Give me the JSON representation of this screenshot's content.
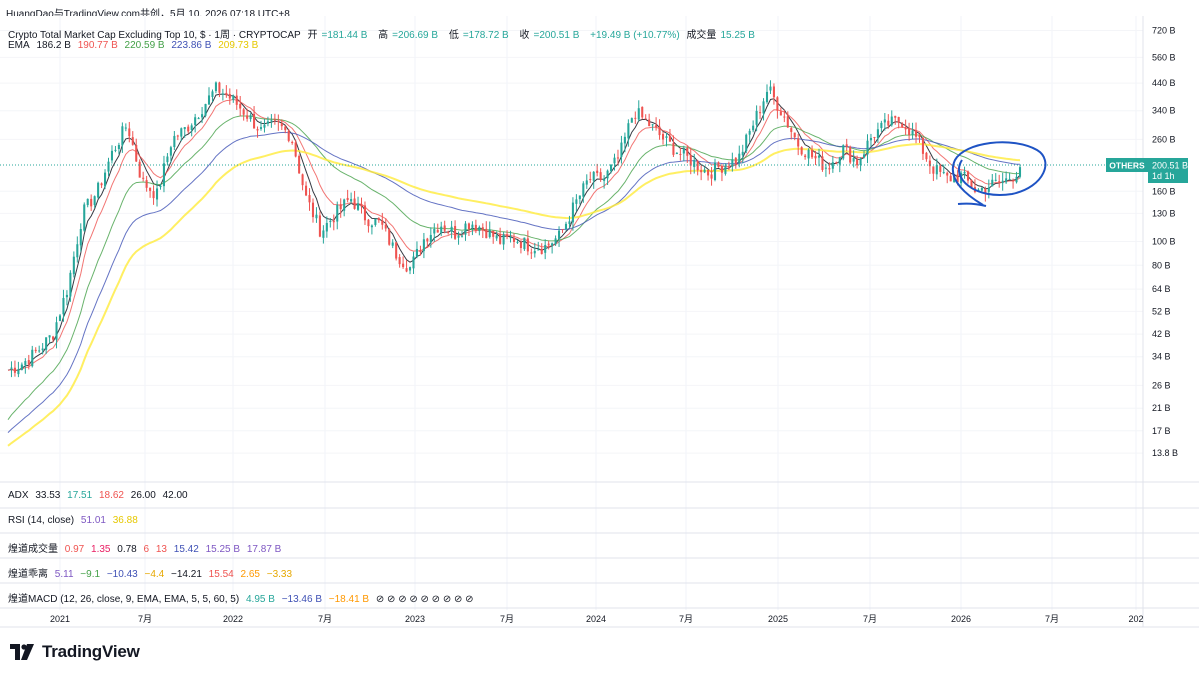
{
  "header": {
    "attribution": "HuangDao与TradingView.com共创，5月 10, 2026 07:18 UTC+8"
  },
  "symbol_line": {
    "name": "Crypto Total Market Cap Excluding Top 10, $ · 1周 · CRYPTOCAP",
    "open_label": "开",
    "open": "=181.44 B",
    "high_label": "高",
    "high": "=206.69 B",
    "low_label": "低",
    "low": "=178.72 B",
    "close_label": "收",
    "close": "=200.51 B",
    "change": "+19.49 B (+10.77%)",
    "volume_label": "成交量",
    "volume": "15.25 B"
  },
  "ema_line": {
    "label": "EMA",
    "v1": "186.2 B",
    "v2": "190.77 B",
    "v3": "220.59 B",
    "v4": "223.86 B",
    "v5": "209.73 B"
  },
  "indicators": {
    "adx": {
      "label": "ADX",
      "values": [
        "33.53",
        "17.51",
        "18.62",
        "26.00",
        "42.00"
      ]
    },
    "rsi": {
      "label": "RSI (14, close)",
      "values": [
        "51.01",
        "36.88"
      ]
    },
    "vol": {
      "label": "煌道成交量",
      "values": [
        "0.97",
        "1.35",
        "0.78",
        "6",
        "13",
        "15.42",
        "15.25 B",
        "17.87 B"
      ]
    },
    "dev": {
      "label": "煌道乖离",
      "values": [
        "5.11",
        "−9.1",
        "−10.43",
        "−4.4",
        "−14.21",
        "15.54",
        "2.65",
        "−3.33"
      ]
    },
    "macd": {
      "label": "煌道MACD (12, 26, close, 9, EMA, EMA, 5, 5, 60, 5)",
      "values": [
        "4.95 B",
        "−13.46 B",
        "−18.41 B"
      ],
      "extra": "⊘ ⊘ ⊘ ⊘ ⊘ ⊘ ⊘ ⊘ ⊘"
    }
  },
  "price_badge": {
    "symbol": "OTHERS",
    "price": "200.51 B",
    "countdown": "1d 1h"
  },
  "y_axis_labels": [
    "720 B",
    "560 B",
    "440 B",
    "340 B",
    "260 B",
    "160 B",
    "130 B",
    "100 B",
    "80 B",
    "64 B",
    "52 B",
    "42 B",
    "34 B",
    "26 B",
    "21 B",
    "17 B",
    "13.8 B"
  ],
  "x_axis_labels": [
    "2021",
    "7月",
    "2022",
    "7月",
    "2023",
    "7月",
    "2024",
    "7月",
    "2025",
    "7月",
    "2026",
    "7月",
    "202"
  ],
  "branding": {
    "logo_text": "TradingView"
  },
  "colors": {
    "up": "#26a69a",
    "down": "#ef5350",
    "ema1": "#131722",
    "ema2": "#ef5350",
    "ema3": "#43a047",
    "ema4": "#3f51b5",
    "ema5": "#ffeb3b",
    "annotation": "#1e53c4",
    "badge": "#26a69a"
  },
  "chart_data": {
    "type": "candlestick",
    "scale": "log",
    "timeframe": "1W",
    "ylim": [
      12,
      780
    ],
    "x_range": [
      "2020-09",
      "2027-02"
    ],
    "price_points": [
      [
        "2020-09",
        30
      ],
      [
        "2020-10",
        32
      ],
      [
        "2020-11",
        36
      ],
      [
        "2020-12",
        42
      ],
      [
        "2021-01",
        65
      ],
      [
        "2021-02",
        130
      ],
      [
        "2021-03",
        160
      ],
      [
        "2021-04",
        230
      ],
      [
        "2021-05",
        300
      ],
      [
        "2021-06",
        175
      ],
      [
        "2021-07",
        155
      ],
      [
        "2021-08",
        260
      ],
      [
        "2021-09",
        290
      ],
      [
        "2021-10",
        350
      ],
      [
        "2021-11",
        420
      ],
      [
        "2021-12",
        380
      ],
      [
        "2022-01",
        330
      ],
      [
        "2022-02",
        280
      ],
      [
        "2022-03",
        300
      ],
      [
        "2022-04",
        270
      ],
      [
        "2022-05",
        150
      ],
      [
        "2022-06",
        110
      ],
      [
        "2022-07",
        130
      ],
      [
        "2022-08",
        150
      ],
      [
        "2022-09",
        125
      ],
      [
        "2022-10",
        118
      ],
      [
        "2022-11",
        90
      ],
      [
        "2022-12",
        78
      ],
      [
        "2023-01",
        105
      ],
      [
        "2023-02",
        118
      ],
      [
        "2023-03",
        108
      ],
      [
        "2023-04",
        120
      ],
      [
        "2023-05",
        112
      ],
      [
        "2023-06",
        100
      ],
      [
        "2023-07",
        103
      ],
      [
        "2023-08",
        96
      ],
      [
        "2023-09",
        95
      ],
      [
        "2023-10",
        105
      ],
      [
        "2023-11",
        140
      ],
      [
        "2023-12",
        180
      ],
      [
        "2024-01",
        180
      ],
      [
        "2024-02",
        220
      ],
      [
        "2024-03",
        340
      ],
      [
        "2024-04",
        300
      ],
      [
        "2024-05",
        260
      ],
      [
        "2024-06",
        230
      ],
      [
        "2024-07",
        210
      ],
      [
        "2024-08",
        190
      ],
      [
        "2024-09",
        205
      ],
      [
        "2024-10",
        215
      ],
      [
        "2024-11",
        300
      ],
      [
        "2024-12",
        420
      ],
      [
        "2025-01",
        330
      ],
      [
        "2025-02",
        250
      ],
      [
        "2025-03",
        220
      ],
      [
        "2025-04",
        200
      ],
      [
        "2025-05",
        240
      ],
      [
        "2025-06",
        210
      ],
      [
        "2025-07",
        270
      ],
      [
        "2025-08",
        300
      ],
      [
        "2025-09",
        310
      ],
      [
        "2025-10",
        260
      ],
      [
        "2025-11",
        200
      ],
      [
        "2025-12",
        180
      ],
      [
        "2026-01",
        185
      ],
      [
        "2026-02",
        160
      ],
      [
        "2026-03",
        170
      ],
      [
        "2026-04",
        178
      ],
      [
        "2026-05",
        200.51
      ]
    ]
  }
}
